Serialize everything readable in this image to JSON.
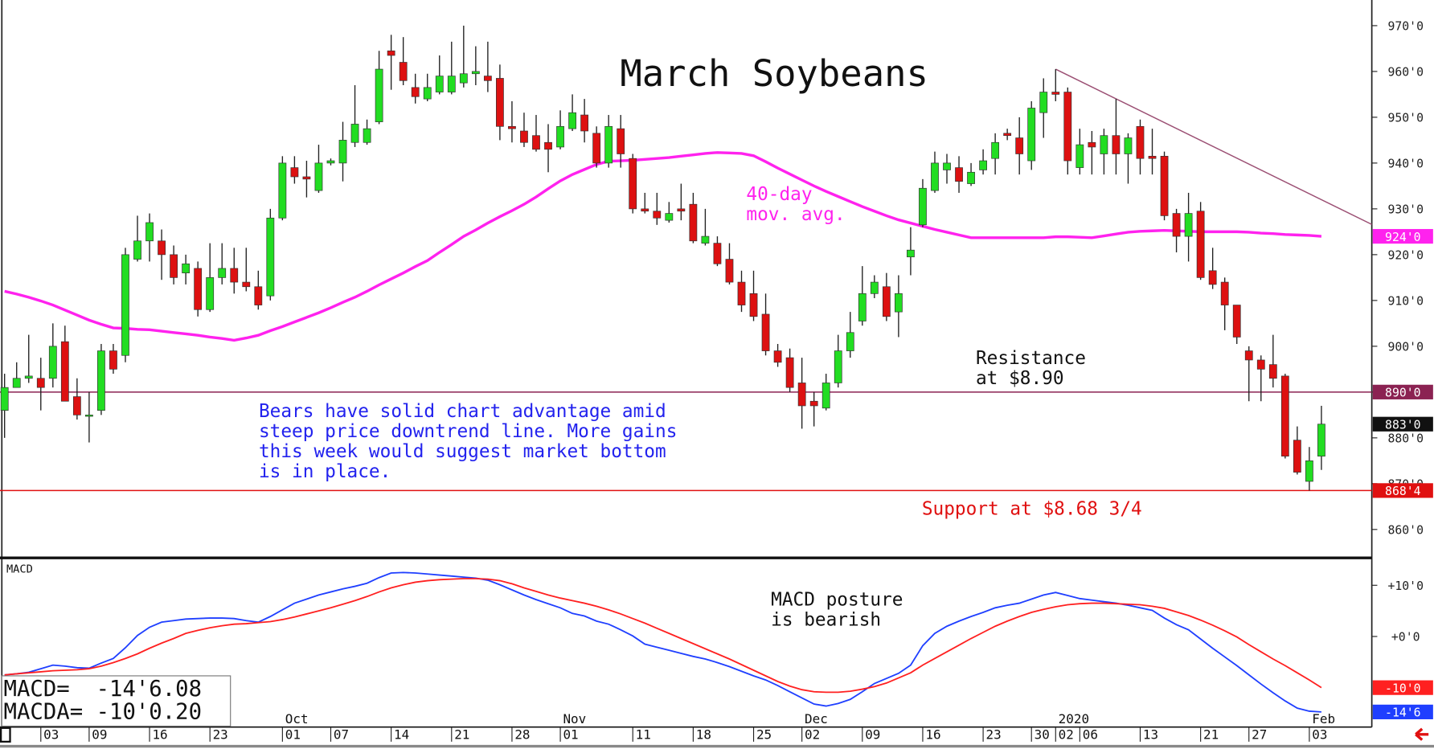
{
  "chart_data": [
    {
      "type": "candlestick",
      "title": "March Soybeans",
      "up_color": "#22dd22",
      "down_color": "#dd1111",
      "ylim": [
        853.8,
        975.6
      ],
      "yticks": [
        {
          "value": 860,
          "label": "860'0"
        },
        {
          "value": 870,
          "label": "870'0"
        },
        {
          "value": 880,
          "label": "880'0"
        },
        {
          "value": 890,
          "label": "890'0"
        },
        {
          "value": 900,
          "label": "900'0"
        },
        {
          "value": 910,
          "label": "910'0"
        },
        {
          "value": 920,
          "label": "920'0"
        },
        {
          "value": 930,
          "label": "930'0"
        },
        {
          "value": 940,
          "label": "940'0"
        },
        {
          "value": 950,
          "label": "950'0"
        },
        {
          "value": 960,
          "label": "960'0"
        },
        {
          "value": 970,
          "label": "970'0"
        }
      ],
      "open": [
        886,
        891,
        893,
        893,
        893,
        901,
        889,
        885,
        886,
        899,
        898,
        919,
        923,
        923,
        920,
        916,
        917,
        908,
        915,
        917,
        914,
        913,
        911,
        928,
        939,
        937,
        934,
        940,
        940,
        944.5,
        944.5,
        949,
        964.5,
        962,
        956.5,
        954,
        955.5,
        955.5,
        957.5,
        959.5,
        959,
        958.5,
        948,
        947,
        946,
        944.5,
        943.5,
        947.5,
        950.5,
        946.5,
        940,
        947.5,
        941,
        930,
        929.5,
        927.5,
        930,
        931,
        922.5,
        922.5,
        919,
        914,
        911.5,
        907,
        899,
        897.5,
        892,
        888,
        886.5,
        892,
        899,
        905.5,
        911.5,
        913,
        907.5,
        919.5,
        926.5,
        934,
        938.5,
        939,
        935.5,
        938.5,
        941,
        946.5,
        945.5,
        940.5,
        951,
        955.5,
        955.5,
        939,
        944.5,
        942,
        946,
        942,
        948,
        941.5,
        941.5,
        929,
        924,
        929.5,
        916.5,
        914,
        909,
        899,
        897,
        896,
        893.5,
        879.5,
        870.5,
        876
      ],
      "high": [
        894,
        896.5,
        902.5,
        897.5,
        905,
        904.5,
        893,
        890,
        900.5,
        900.5,
        921.5,
        928.5,
        929,
        925.5,
        922,
        920,
        918.5,
        922.5,
        922.5,
        921.5,
        921.5,
        916.5,
        930,
        941.5,
        941.5,
        940.5,
        944,
        941,
        949,
        957,
        949.5,
        964.5,
        968,
        967.5,
        959.5,
        959.5,
        963.5,
        966.5,
        970,
        965.5,
        966.5,
        961.5,
        953.5,
        951,
        950.5,
        948.5,
        951.5,
        955,
        954,
        948,
        950.5,
        950.5,
        942,
        933.5,
        933.5,
        931.5,
        935.5,
        933.5,
        930,
        924,
        922.5,
        916.5,
        916.5,
        911.5,
        900.5,
        899.5,
        897.5,
        890,
        894,
        902.5,
        907.5,
        917.5,
        915.5,
        916,
        915.5,
        926,
        936.5,
        942.5,
        942,
        941.5,
        940,
        943,
        946.5,
        947.5,
        950,
        953.5,
        958.5,
        960.5,
        956.5,
        947.5,
        947,
        947.5,
        954,
        946.5,
        949.5,
        947.5,
        942.5,
        930,
        933.5,
        931.5,
        921.5,
        915,
        909,
        900,
        898,
        902.5,
        894,
        882.5,
        878,
        887
      ],
      "low": [
        880,
        891,
        892,
        886,
        891,
        888,
        884,
        879,
        885,
        894,
        896.5,
        918.5,
        918.5,
        914.5,
        913.5,
        913.5,
        906.5,
        907.5,
        913.5,
        911.5,
        912,
        908,
        910,
        927.5,
        935.5,
        932.5,
        933.5,
        939.5,
        936,
        943.5,
        944,
        948.5,
        956,
        957,
        953,
        953.5,
        955,
        955,
        956.5,
        957,
        955.5,
        945,
        944.5,
        943.5,
        942.5,
        938,
        943,
        947,
        944.5,
        939,
        939,
        939,
        929,
        929,
        926.5,
        927,
        927.5,
        922.5,
        922,
        917.5,
        913.5,
        907.5,
        905.5,
        898,
        895.5,
        890,
        882,
        882.5,
        886,
        891,
        897.5,
        904.5,
        910.5,
        905.5,
        902,
        915.5,
        926,
        933.5,
        935.5,
        933.5,
        935,
        937.5,
        937.5,
        945,
        937.5,
        938.5,
        945.5,
        953.5,
        937.5,
        937.5,
        937.5,
        937.5,
        937.5,
        935.5,
        937.5,
        937.5,
        927.5,
        920.5,
        918.5,
        914.5,
        912.5,
        903.5,
        900.5,
        888,
        888,
        891,
        875.5,
        872,
        868.5,
        873
      ],
      "close": [
        891,
        893,
        893.5,
        891,
        900,
        888,
        885,
        885,
        899,
        895,
        920,
        923,
        927,
        920,
        915,
        918,
        908,
        915,
        917,
        914,
        913,
        909,
        928,
        940,
        937,
        936.5,
        940,
        940.5,
        945,
        948.5,
        947.5,
        960.5,
        963.5,
        958,
        954.5,
        956.5,
        959,
        959,
        959.5,
        960,
        958,
        948,
        947.5,
        944.5,
        943,
        943,
        948,
        951,
        947,
        940,
        948,
        942,
        930,
        929.5,
        928,
        929,
        929.5,
        923,
        924,
        918,
        914,
        909,
        906.5,
        899,
        896.5,
        891,
        887,
        887,
        892,
        899,
        903,
        911.5,
        914,
        906.5,
        911.5,
        921,
        934.5,
        940,
        940,
        936,
        938,
        940.5,
        944.5,
        946,
        942,
        952,
        955.5,
        955,
        940.5,
        944,
        943.5,
        946,
        942,
        945.5,
        941,
        941,
        928.5,
        924,
        929,
        915,
        913.5,
        909,
        902,
        897,
        895,
        893,
        876,
        872.5,
        875,
        883
      ],
      "last_label": "883'0",
      "moving_average": {
        "label": [
          "40-day",
          "mov. avg."
        ],
        "color": "#ff22ee",
        "end_label": "924'0",
        "values": [
          912,
          911.4,
          910.7,
          909.9,
          909,
          907.9,
          906.8,
          905.7,
          904.8,
          904,
          903.9,
          903.7,
          903.6,
          903.3,
          903,
          902.7,
          902.4,
          902,
          901.7,
          901.3,
          901.8,
          902.4,
          903.4,
          904.3,
          905.3,
          906.3,
          907.3,
          908.4,
          909.6,
          910.7,
          912,
          913.4,
          914.7,
          916,
          917.4,
          918.7,
          920.5,
          922.2,
          924,
          925.4,
          926.9,
          928.3,
          929.6,
          931,
          932.6,
          934.4,
          936.1,
          937.5,
          938.6,
          939.7,
          940.4,
          940.5,
          940.6,
          940.8,
          941,
          941.2,
          941.5,
          941.8,
          942.1,
          942.3,
          942.2,
          942.1,
          941.6,
          940.3,
          938.9,
          937.6,
          936.3,
          935,
          933.8,
          932.7,
          931.6,
          930.5,
          929.5,
          928.5,
          927.6,
          926.9,
          926.2,
          925.5,
          924.9,
          924.3,
          923.7,
          923.7,
          923.7,
          923.7,
          923.7,
          923.7,
          923.7,
          923.9,
          923.9,
          923.8,
          923.7,
          924.1,
          924.5,
          924.9,
          925.1,
          925.2,
          925.3,
          925.2,
          925.1,
          925,
          925,
          925,
          925,
          924.9,
          924.7,
          924.6,
          924.4,
          924.3,
          924.2,
          924
        ]
      },
      "resistance": {
        "value": 890,
        "label": "890'0",
        "color": "#8b2252",
        "text": [
          "Resistance",
          "at $8.90"
        ]
      },
      "support": {
        "value": 868.5,
        "label": "868'4",
        "color": "#e01010",
        "text": "Support at $8.68 3/4"
      },
      "trendline": {
        "values": [
          960.5,
          926.6
        ],
        "color": "#9b4f73"
      },
      "comment": [
        "Bears have solid chart advantage amid",
        "steep price downtrend line. More gains",
        "this week would suggest market bottom",
        "is in place."
      ]
    },
    {
      "type": "line",
      "label": "MACD",
      "ylim": [
        -17.7,
        15
      ],
      "yticks": [
        {
          "value": 10,
          "label": "+10'0"
        },
        {
          "value": 0,
          "label": "+0'0"
        }
      ],
      "categories": [
        null,
        null,
        null,
        "03",
        null,
        null,
        null,
        "09",
        null,
        null,
        null,
        null,
        "16",
        null,
        null,
        null,
        null,
        "23",
        null,
        null,
        null,
        null,
        null,
        "01",
        null,
        null,
        null,
        "07",
        null,
        null,
        null,
        null,
        "14",
        null,
        null,
        null,
        null,
        "21",
        null,
        null,
        null,
        null,
        "28",
        null,
        null,
        null,
        "01",
        null,
        null,
        null,
        null,
        null,
        "11",
        null,
        null,
        null,
        null,
        "18",
        null,
        null,
        null,
        null,
        "25",
        null,
        null,
        null,
        "02",
        null,
        null,
        null,
        null,
        "09",
        null,
        null,
        null,
        null,
        "16",
        null,
        null,
        null,
        null,
        "23",
        null,
        null,
        null,
        "30",
        null,
        "02",
        null,
        "06",
        null,
        null,
        null,
        null,
        "13",
        null,
        null,
        null,
        null,
        "21",
        null,
        null,
        null,
        "27",
        null,
        null,
        null,
        null,
        "03",
        null
      ],
      "month_labels": [
        null,
        null,
        null,
        null,
        null,
        null,
        null,
        null,
        null,
        null,
        null,
        null,
        null,
        null,
        null,
        null,
        null,
        null,
        null,
        null,
        null,
        null,
        null,
        "Oct",
        null,
        null,
        null,
        null,
        null,
        null,
        null,
        null,
        null,
        null,
        null,
        null,
        null,
        null,
        null,
        null,
        null,
        null,
        null,
        null,
        null,
        null,
        "Nov",
        null,
        null,
        null,
        null,
        null,
        null,
        null,
        null,
        null,
        null,
        null,
        null,
        null,
        null,
        null,
        null,
        null,
        null,
        null,
        "Dec",
        null,
        null,
        null,
        null,
        null,
        null,
        null,
        null,
        null,
        null,
        null,
        null,
        null,
        null,
        null,
        null,
        null,
        null,
        null,
        null,
        "2020",
        null,
        null,
        null,
        null,
        null,
        null,
        null,
        null,
        null,
        null,
        null,
        null,
        null,
        null,
        null,
        null,
        null,
        null,
        null,
        null,
        "Feb",
        null
      ],
      "series": [
        {
          "color": "#1f3fff",
          "end_label": "-14'6",
          "values": [
            -7.5,
            -7.3,
            -7,
            -6.3,
            -5.6,
            -5.8,
            -6.1,
            -6.2,
            -5.2,
            -4.3,
            -2.2,
            0.2,
            1.8,
            2.8,
            3.1,
            3.4,
            3.5,
            3.6,
            3.6,
            3.5,
            3.1,
            2.8,
            3.9,
            5.2,
            6.5,
            7.3,
            8.1,
            8.7,
            9.3,
            9.8,
            10.4,
            11.5,
            12.4,
            12.5,
            12.4,
            12.2,
            12,
            11.8,
            11.6,
            11.4,
            11,
            10.1,
            9.1,
            8.1,
            7.2,
            6.4,
            5.6,
            4.5,
            4,
            3,
            2.4,
            1.3,
            0.1,
            -1.5,
            -2.1,
            -2.7,
            -3.3,
            -3.9,
            -4.4,
            -5.1,
            -5.9,
            -6.8,
            -7.7,
            -8.5,
            -9.6,
            -10.8,
            -12,
            -13.2,
            -13.6,
            -13.1,
            -12.3,
            -10.8,
            -9.2,
            -8.2,
            -7.2,
            -5.6,
            -1.8,
            0.6,
            2,
            3,
            3.9,
            4.7,
            5.6,
            6.1,
            6.5,
            7.3,
            8.1,
            8.6,
            8,
            7.4,
            7.1,
            6.8,
            6.5,
            6.1,
            5.6,
            5.1,
            3.6,
            2.3,
            1.3,
            -0.5,
            -2.3,
            -4,
            -5.7,
            -7.5,
            -9.3,
            -11,
            -12.6,
            -14,
            -14.6,
            -14.75
          ]
        },
        {
          "color": "#ff2020",
          "end_label": "-10'0",
          "values": [
            -7.5,
            -7.3,
            -7.1,
            -6.9,
            -6.7,
            -6.6,
            -6.5,
            -6.3,
            -5.8,
            -5.1,
            -4.3,
            -3.4,
            -2.3,
            -1.3,
            -0.4,
            0.6,
            1.2,
            1.7,
            2.1,
            2.4,
            2.5,
            2.7,
            2.9,
            3.3,
            3.8,
            4.4,
            5,
            5.6,
            6.3,
            7,
            7.8,
            8.7,
            9.5,
            10.1,
            10.6,
            10.9,
            11.1,
            11.2,
            11.3,
            11.3,
            11.2,
            10.9,
            10.3,
            9.5,
            8.8,
            8.1,
            7.5,
            7,
            6.5,
            5.9,
            5.2,
            4.4,
            3.5,
            2.6,
            1.6,
            0.6,
            -0.4,
            -1.4,
            -2.4,
            -3.4,
            -4.4,
            -5.5,
            -6.6,
            -7.7,
            -8.8,
            -9.7,
            -10.4,
            -10.8,
            -10.9,
            -10.9,
            -10.7,
            -10.3,
            -9.8,
            -9.1,
            -8.1,
            -7.1,
            -5.6,
            -4.3,
            -3,
            -1.7,
            -0.4,
            0.8,
            2,
            3,
            3.9,
            4.7,
            5.3,
            5.8,
            6.2,
            6.4,
            6.5,
            6.5,
            6.4,
            6.3,
            6.2,
            5.9,
            5.5,
            4.8,
            4.1,
            3.2,
            2.2,
            1.1,
            -0.1,
            -1.6,
            -3,
            -4.4,
            -5.7,
            -7.1,
            -8.5,
            -10
          ]
        }
      ],
      "comment": [
        "MACD posture",
        "is bearish"
      ],
      "readouts": [
        "MACD=  -14'6.08",
        "MACDA= -10'0.20"
      ]
    }
  ]
}
